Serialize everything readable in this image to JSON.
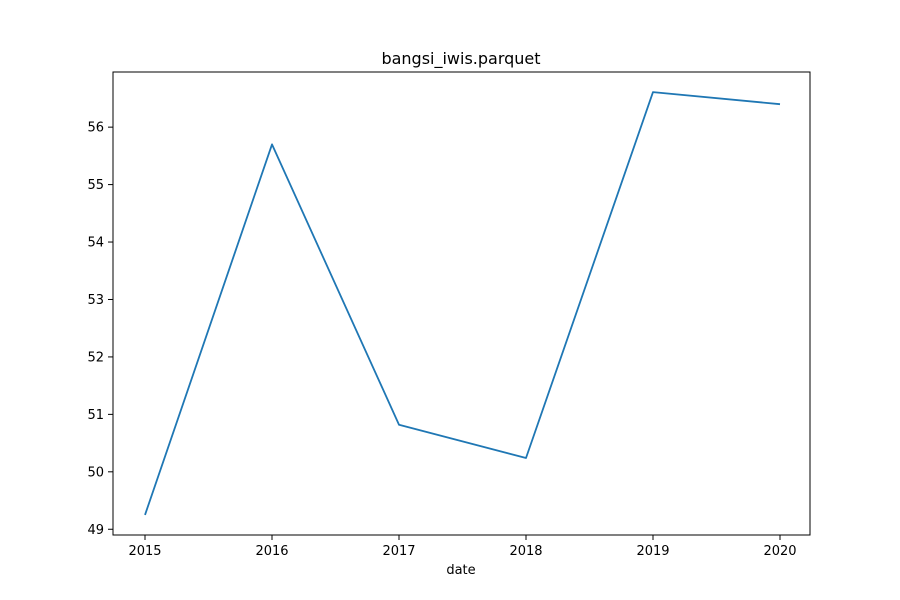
{
  "chart_data": {
    "type": "line",
    "title": "bangsi_iwis.parquet",
    "xlabel": "date",
    "ylabel": "",
    "x": [
      "2015",
      "2016",
      "2017",
      "2018",
      "2019",
      "2020"
    ],
    "series": [
      {
        "values": [
          49.25,
          55.7,
          50.82,
          50.24,
          56.61,
          56.4
        ],
        "color": "#1f77b4"
      }
    ],
    "x_ticks": [
      "2015",
      "2016",
      "2017",
      "2018",
      "2019",
      "2020"
    ],
    "y_ticks": [
      "49",
      "50",
      "51",
      "52",
      "53",
      "54",
      "55",
      "56"
    ],
    "ylim": [
      48.9,
      56.96
    ],
    "grid": false,
    "legend": "none"
  }
}
